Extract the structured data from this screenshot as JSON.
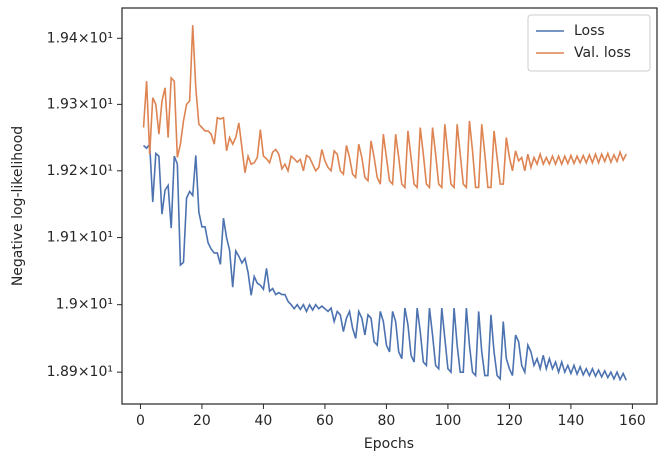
{
  "chart_data": {
    "type": "line",
    "xlabel": "Epochs",
    "ylabel": "Negative log-likelihood",
    "x": [
      1,
      2,
      3,
      4,
      5,
      6,
      7,
      8,
      9,
      10,
      11,
      12,
      13,
      14,
      15,
      16,
      17,
      18,
      19,
      20,
      21,
      22,
      23,
      24,
      25,
      26,
      27,
      28,
      29,
      30,
      31,
      32,
      33,
      34,
      35,
      36,
      37,
      38,
      39,
      40,
      41,
      42,
      43,
      44,
      45,
      46,
      47,
      48,
      49,
      50,
      51,
      52,
      53,
      54,
      55,
      56,
      57,
      58,
      59,
      60,
      61,
      62,
      63,
      64,
      65,
      66,
      67,
      68,
      69,
      70,
      71,
      72,
      73,
      74,
      75,
      76,
      77,
      78,
      79,
      80,
      81,
      82,
      83,
      84,
      85,
      86,
      87,
      88,
      89,
      90,
      91,
      92,
      93,
      94,
      95,
      96,
      97,
      98,
      99,
      100,
      101,
      102,
      103,
      104,
      105,
      106,
      107,
      108,
      109,
      110,
      111,
      112,
      113,
      114,
      115,
      116,
      117,
      118,
      119,
      120,
      121,
      122,
      123,
      124,
      125,
      126,
      127,
      128,
      129,
      130,
      131,
      132,
      133,
      134,
      135,
      136,
      137,
      138,
      139,
      140,
      141,
      142,
      143,
      144,
      145,
      146,
      147,
      148,
      149,
      150,
      151,
      152,
      153,
      154,
      155,
      156,
      157,
      158
    ],
    "series": [
      {
        "name": "Loss",
        "color": "#4c72b0",
        "values": [
          19.238,
          19.234,
          19.24,
          19.153,
          19.226,
          19.222,
          19.135,
          19.171,
          19.178,
          19.114,
          19.222,
          19.21,
          19.059,
          19.063,
          19.159,
          19.169,
          19.163,
          19.223,
          19.138,
          19.116,
          19.116,
          19.092,
          19.083,
          19.077,
          19.077,
          19.06,
          19.129,
          19.1,
          19.081,
          19.026,
          19.08,
          19.072,
          19.062,
          19.069,
          19.048,
          19.014,
          19.042,
          19.032,
          19.029,
          19.023,
          19.054,
          19.02,
          19.024,
          19.015,
          19.018,
          19.015,
          19.015,
          19.005,
          19.0,
          18.994,
          19.0,
          18.993,
          19.0,
          18.99,
          19.0,
          18.992,
          19.0,
          18.994,
          18.998,
          18.994,
          18.99,
          18.995,
          18.975,
          18.99,
          18.985,
          18.96,
          18.98,
          18.99,
          18.965,
          18.95,
          18.99,
          18.98,
          18.955,
          18.985,
          18.98,
          18.945,
          18.94,
          18.99,
          18.975,
          18.94,
          18.93,
          18.99,
          18.975,
          18.93,
          18.92,
          18.995,
          18.97,
          18.925,
          18.915,
          18.995,
          18.96,
          18.915,
          18.91,
          18.995,
          18.955,
          18.91,
          18.905,
          18.995,
          18.95,
          18.905,
          18.9,
          18.995,
          18.94,
          18.9,
          18.9,
          18.995,
          18.94,
          18.9,
          18.895,
          18.99,
          18.93,
          18.895,
          18.895,
          18.985,
          18.93,
          18.895,
          18.89,
          18.975,
          18.92,
          18.905,
          18.895,
          18.955,
          18.945,
          18.91,
          18.9,
          18.94,
          18.93,
          18.91,
          18.92,
          18.905,
          18.925,
          18.905,
          18.92,
          18.905,
          18.915,
          18.9,
          18.915,
          18.9,
          18.91,
          18.898,
          18.91,
          18.897,
          18.908,
          18.896,
          18.905,
          18.895,
          18.905,
          18.894,
          18.903,
          18.893,
          18.902,
          18.892,
          18.9,
          18.89,
          18.9,
          18.889,
          18.898,
          18.888
        ]
      },
      {
        "name": "Val. loss",
        "color": "#dd8452",
        "values": [
          19.265,
          19.335,
          19.225,
          19.31,
          19.3,
          19.255,
          19.305,
          19.325,
          19.25,
          19.34,
          19.335,
          19.22,
          19.24,
          19.275,
          19.3,
          19.305,
          19.42,
          19.325,
          19.27,
          19.265,
          19.26,
          19.26,
          19.255,
          19.24,
          19.28,
          19.278,
          19.28,
          19.23,
          19.25,
          19.24,
          19.25,
          19.272,
          19.235,
          19.197,
          19.222,
          19.21,
          19.212,
          19.22,
          19.262,
          19.222,
          19.218,
          19.212,
          19.228,
          19.232,
          19.225,
          19.203,
          19.21,
          19.2,
          19.222,
          19.218,
          19.213,
          19.217,
          19.2,
          19.223,
          19.22,
          19.21,
          19.2,
          19.205,
          19.232,
          19.215,
          19.205,
          19.2,
          19.23,
          19.225,
          19.2,
          19.195,
          19.238,
          19.22,
          19.195,
          19.19,
          19.24,
          19.22,
          19.19,
          19.185,
          19.245,
          19.22,
          19.19,
          19.18,
          19.255,
          19.22,
          19.185,
          19.18,
          19.255,
          19.22,
          19.18,
          19.175,
          19.26,
          19.22,
          19.18,
          19.175,
          19.265,
          19.225,
          19.18,
          19.175,
          19.265,
          19.225,
          19.18,
          19.175,
          19.27,
          19.225,
          19.18,
          19.175,
          19.27,
          19.225,
          19.18,
          19.175,
          19.275,
          19.23,
          19.175,
          19.175,
          19.27,
          19.225,
          19.175,
          19.175,
          19.26,
          19.22,
          19.18,
          19.18,
          19.25,
          19.22,
          19.2,
          19.23,
          19.215,
          19.22,
          19.2,
          19.225,
          19.205,
          19.22,
          19.21,
          19.225,
          19.21,
          19.22,
          19.21,
          19.222,
          19.21,
          19.222,
          19.21,
          19.222,
          19.211,
          19.223,
          19.211,
          19.222,
          19.212,
          19.223,
          19.212,
          19.224,
          19.212,
          19.225,
          19.212,
          19.225,
          19.214,
          19.226,
          19.213,
          19.224,
          19.214,
          19.228,
          19.216,
          19.225
        ]
      }
    ],
    "xlim": [
      -6,
      168
    ],
    "xticks": [
      0,
      20,
      40,
      60,
      80,
      100,
      120,
      140,
      160
    ],
    "ylim": [
      18.853,
      19.446
    ],
    "ylog": true,
    "yticks": [
      {
        "value": 18.9,
        "label": "1.89×10¹"
      },
      {
        "value": 19.0,
        "label": "1.9×10¹"
      },
      {
        "value": 19.1,
        "label": "1.91×10¹"
      },
      {
        "value": 19.2,
        "label": "1.92×10¹"
      },
      {
        "value": 19.3,
        "label": "1.93×10¹"
      },
      {
        "value": 19.4,
        "label": "1.94×10¹"
      }
    ],
    "legend": "upper right"
  }
}
